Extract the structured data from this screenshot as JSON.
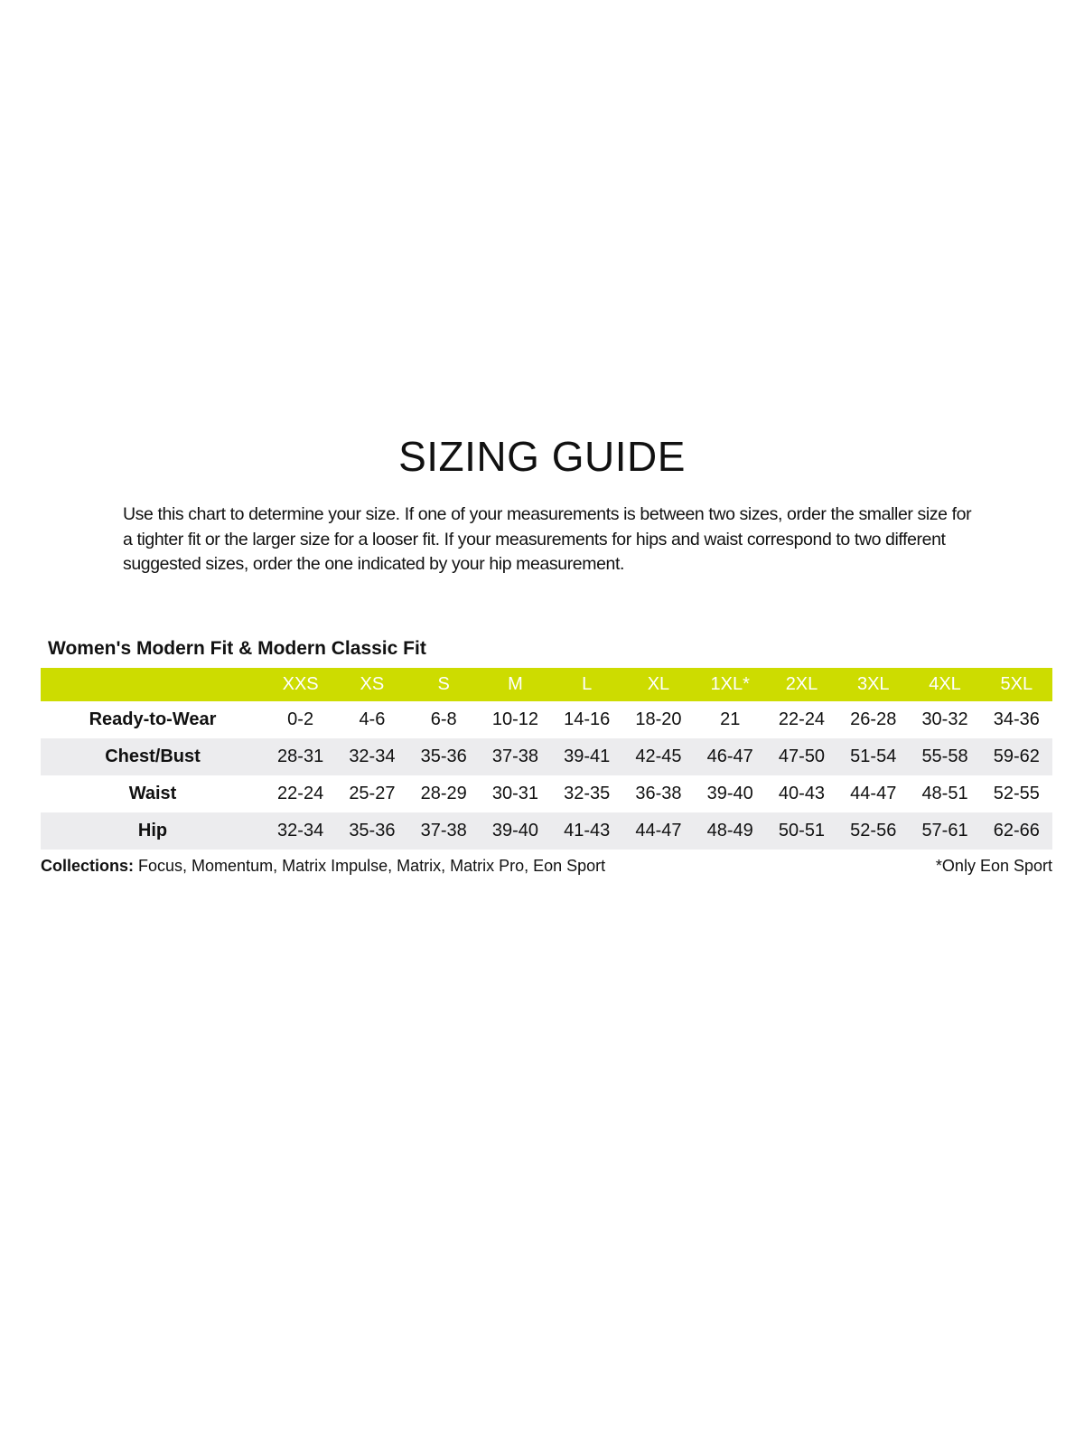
{
  "title": "SIZING GUIDE",
  "intro": "Use this chart to determine your size. If one of your measurements is between two sizes, order the smaller size for a tighter fit or the larger size for a looser fit. If your measurements for hips and waist correspond to two different suggested sizes, order the one indicated by your hip measurement.",
  "table": {
    "title": "Women's Modern Fit & Modern Classic Fit",
    "header_color": "#cddc00",
    "sizes": [
      "XXS",
      "XS",
      "S",
      "M",
      "L",
      "XL",
      "1XL*",
      "2XL",
      "3XL",
      "4XL",
      "5XL"
    ],
    "rows": [
      {
        "label": "Ready-to-Wear",
        "values": [
          "0-2",
          "4-6",
          "6-8",
          "10-12",
          "14-16",
          "18-20",
          "21",
          "22-24",
          "26-28",
          "30-32",
          "34-36"
        ]
      },
      {
        "label": "Chest/Bust",
        "values": [
          "28-31",
          "32-34",
          "35-36",
          "37-38",
          "39-41",
          "42-45",
          "46-47",
          "47-50",
          "51-54",
          "55-58",
          "59-62"
        ]
      },
      {
        "label": "Waist",
        "values": [
          "22-24",
          "25-27",
          "28-29",
          "30-31",
          "32-35",
          "36-38",
          "39-40",
          "40-43",
          "44-47",
          "48-51",
          "52-55"
        ]
      },
      {
        "label": "Hip",
        "values": [
          "32-34",
          "35-36",
          "37-38",
          "39-40",
          "41-43",
          "44-47",
          "48-49",
          "50-51",
          "52-56",
          "57-61",
          "62-66"
        ]
      }
    ]
  },
  "footer": {
    "collections_label": "Collections:",
    "collections": "Focus, Momentum, Matrix Impulse, Matrix, Matrix Pro, Eon Sport",
    "note": "*Only Eon Sport"
  }
}
